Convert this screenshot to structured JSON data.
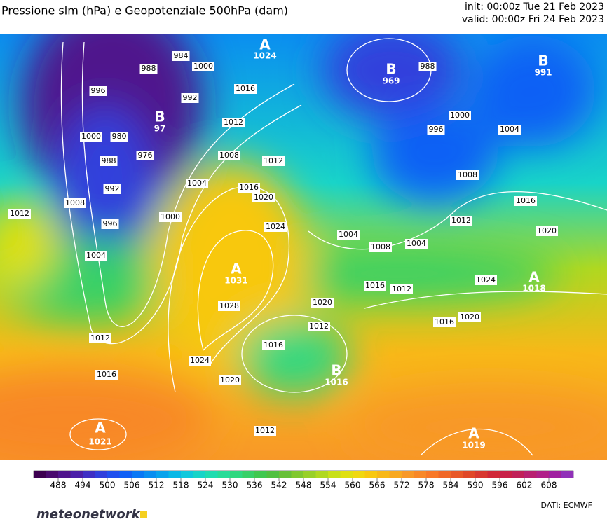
{
  "header": {
    "title": "Pressione slm (hPa) e Geopotenziale 500hPa (dam)",
    "init": "init: 00:00z Tue 21 Feb 2023",
    "valid": "valid: 00:00z Fri 24 Feb 2023"
  },
  "centers": [
    {
      "symbol": "A",
      "value": "1024"
    },
    {
      "symbol": "B",
      "value": "969"
    },
    {
      "symbol": "B",
      "value": "991"
    },
    {
      "symbol": "B",
      "value": "97"
    },
    {
      "symbol": "A",
      "value": "1031"
    },
    {
      "symbol": "A",
      "value": "1021"
    },
    {
      "symbol": "A",
      "value": "1019"
    },
    {
      "symbol": "A",
      "value": "1018"
    },
    {
      "symbol": "B",
      "value": "1016"
    }
  ],
  "isobar_labels": [
    "988",
    "984",
    "1000",
    "992",
    "996",
    "1000",
    "980",
    "988",
    "976",
    "992",
    "996",
    "1008",
    "1012",
    "1004",
    "1000",
    "1004",
    "1008",
    "1012",
    "1016",
    "1012",
    "1016",
    "1020",
    "1024",
    "1028",
    "1024",
    "1020",
    "1016",
    "1012",
    "1012",
    "1004",
    "1008",
    "1004",
    "1012",
    "1016",
    "1020",
    "1024",
    "1020",
    "1016",
    "1016",
    "1012",
    "1020",
    "1012",
    "1016",
    "988",
    "996",
    "1000",
    "1004",
    "1008"
  ],
  "colorbar": {
    "ticks": [
      "488",
      "494",
      "500",
      "506",
      "512",
      "518",
      "524",
      "530",
      "536",
      "542",
      "548",
      "554",
      "560",
      "566",
      "572",
      "578",
      "584",
      "590",
      "596",
      "602",
      "608"
    ],
    "colors": [
      "#3d0050",
      "#4a0a6e",
      "#50148c",
      "#4b1fa8",
      "#3f2fc4",
      "#3040dc",
      "#2050ee",
      "#1060f5",
      "#0a78f5",
      "#0a8ef0",
      "#0aa3ec",
      "#0ab8e6",
      "#10c8dc",
      "#18d4c8",
      "#20dcb0",
      "#28dc98",
      "#30d880",
      "#38d068",
      "#40c850",
      "#50c040",
      "#68c038",
      "#80c830",
      "#98d028",
      "#b0d820",
      "#c8e018",
      "#e0e010",
      "#f0d810",
      "#f8c810",
      "#f8b818",
      "#f8a820",
      "#f89828",
      "#f88828",
      "#f87828",
      "#f06828",
      "#e85828",
      "#e04828",
      "#d83830",
      "#d02838",
      "#c82048",
      "#c02058",
      "#b82070",
      "#b02088",
      "#a020a0",
      "#9030b8"
    ]
  },
  "footer": {
    "logo": "meteonetwork",
    "source": "DATI:  ECMWF"
  }
}
